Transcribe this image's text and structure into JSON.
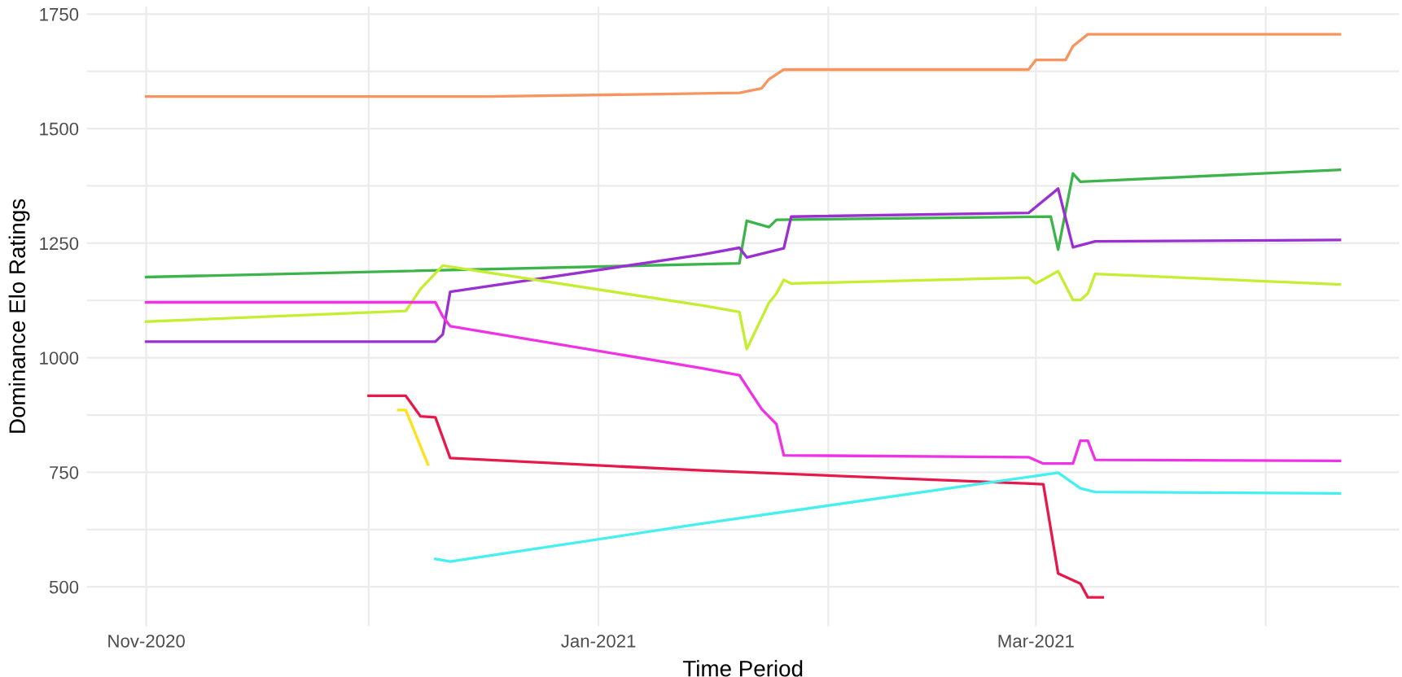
{
  "chart_data": {
    "type": "line",
    "xlabel": "Time Period",
    "ylabel": "Dominance Elo Ratings",
    "xlim": [
      "2020-10-24",
      "2021-04-19"
    ],
    "xticks": [
      {
        "value": "2020-11-01",
        "label": "Nov-2020"
      },
      {
        "value": "2020-12-01",
        "label": null
      },
      {
        "value": "2021-01-01",
        "label": "Jan-2021"
      },
      {
        "value": "2021-02-01",
        "label": null
      },
      {
        "value": "2021-03-01",
        "label": "Mar-2021"
      },
      {
        "value": "2021-04-01",
        "label": null
      }
    ],
    "ylim": [
      414,
      1766
    ],
    "yticks": [
      500,
      {
        "value": 625,
        "label": null
      },
      750,
      {
        "value": 875,
        "label": null
      },
      1000,
      {
        "value": 1125,
        "label": null
      },
      1250,
      {
        "value": 1375,
        "label": null
      },
      1500,
      {
        "value": 1625,
        "label": null
      },
      1750
    ],
    "grid": true,
    "legend": false,
    "marker": "none",
    "line_style": "solid",
    "series": [
      {
        "color": "#f8955f",
        "x": [
          "2020-11-01",
          "2020-12-17",
          "2021-01-20",
          "2021-01-23",
          "2021-01-24",
          "2021-01-26",
          "2021-02-28",
          "2021-03-01",
          "2021-03-05",
          "2021-03-06",
          "2021-03-08",
          "2021-04-11"
        ],
        "values": [
          1570,
          1570,
          1578,
          1588,
          1608,
          1629,
          1629,
          1650,
          1650,
          1680,
          1706,
          1706
        ]
      },
      {
        "color": "#3cb44b",
        "x": [
          "2020-11-01",
          "2021-01-20",
          "2021-01-21",
          "2021-01-24",
          "2021-01-25",
          "2021-03-03",
          "2021-03-04",
          "2021-03-06",
          "2021-03-07",
          "2021-04-11"
        ],
        "values": [
          1176,
          1206,
          1299,
          1285,
          1301,
          1308,
          1236,
          1402,
          1384,
          1410
        ]
      },
      {
        "color": "#9b30d0",
        "x": [
          "2020-11-01",
          "2020-12-10",
          "2020-12-11",
          "2020-12-12",
          "2021-01-15",
          "2021-01-20",
          "2021-01-21",
          "2021-01-26",
          "2021-01-27",
          "2021-02-28",
          "2021-03-04",
          "2021-03-06",
          "2021-03-09",
          "2021-04-11"
        ],
        "values": [
          1035,
          1035,
          1051,
          1144,
          1225,
          1240,
          1219,
          1239,
          1308,
          1316,
          1369,
          1241,
          1254,
          1257
        ]
      },
      {
        "color": "#c4ef30",
        "x": [
          "2020-11-01",
          "2020-12-06",
          "2020-12-08",
          "2020-12-11",
          "2021-01-15",
          "2021-01-20",
          "2021-01-21",
          "2021-01-24",
          "2021-01-25",
          "2021-01-26",
          "2021-01-27",
          "2021-02-28",
          "2021-03-01",
          "2021-03-04",
          "2021-03-06",
          "2021-03-07",
          "2021-03-08",
          "2021-03-09",
          "2021-04-11"
        ],
        "values": [
          1079,
          1102,
          1150,
          1201,
          1114,
          1100,
          1019,
          1120,
          1140,
          1170,
          1162,
          1175,
          1162,
          1189,
          1126,
          1126,
          1140,
          1183,
          1160
        ]
      },
      {
        "color": "#f032e6",
        "x": [
          "2020-11-01",
          "2020-12-10",
          "2020-12-11",
          "2020-12-12",
          "2021-01-15",
          "2021-01-20",
          "2021-01-23",
          "2021-01-25",
          "2021-01-26",
          "2021-02-28",
          "2021-03-02",
          "2021-03-06",
          "2021-03-07",
          "2021-03-08",
          "2021-03-09",
          "2021-04-11"
        ],
        "values": [
          1121,
          1121,
          1090,
          1069,
          977,
          962,
          888,
          855,
          787,
          783,
          769,
          769,
          819,
          819,
          777,
          775
        ]
      },
      {
        "color": "#e6194b",
        "x": [
          "2020-12-01",
          "2020-12-06",
          "2020-12-08",
          "2020-12-10",
          "2020-12-12",
          "2021-01-15",
          "2021-03-02",
          "2021-03-04",
          "2021-03-07",
          "2021-03-08",
          "2021-03-10"
        ],
        "values": [
          917,
          917,
          872,
          870,
          781,
          754,
          724,
          529,
          507,
          477,
          477
        ]
      },
      {
        "color": "#ffe119",
        "x": [
          "2020-12-05",
          "2020-12-06",
          "2020-12-09"
        ],
        "values": [
          886,
          886,
          767
        ]
      },
      {
        "color": "#46f0f0",
        "x": [
          "2020-12-10",
          "2020-12-12",
          "2021-01-15",
          "2021-03-04",
          "2021-03-07",
          "2021-03-09",
          "2021-04-11"
        ],
        "values": [
          561,
          555,
          638,
          749,
          715,
          707,
          704
        ]
      }
    ]
  }
}
